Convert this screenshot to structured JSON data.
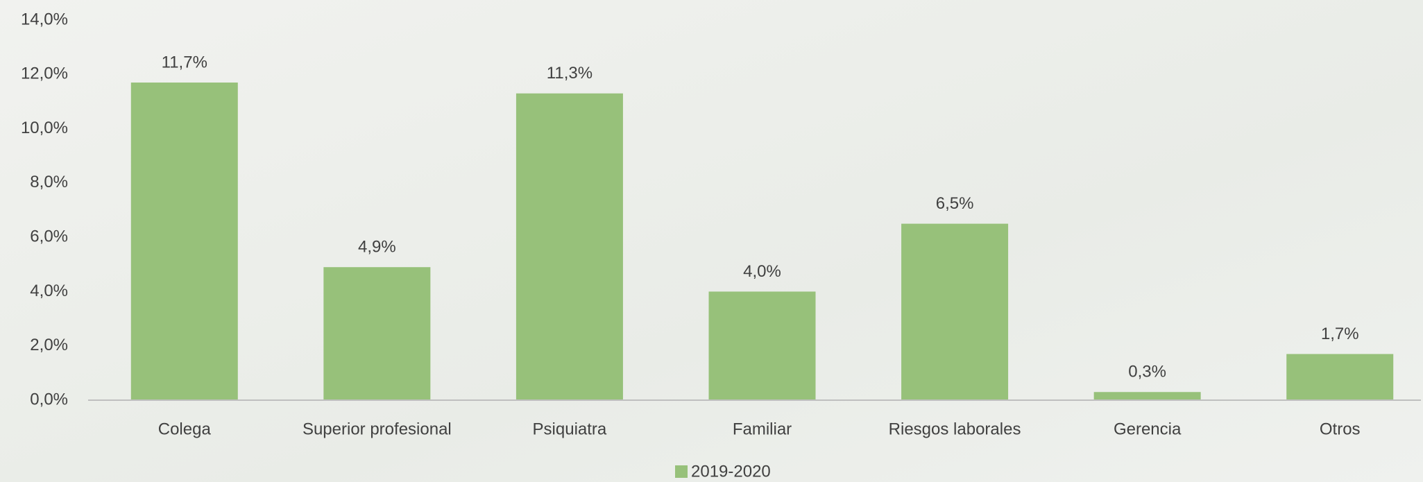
{
  "chart_data": {
    "type": "bar",
    "categories": [
      "Colega",
      "Superior profesional",
      "Psiquiatra",
      "Familiar",
      "Riesgos laborales",
      "Gerencia",
      "Otros"
    ],
    "series": [
      {
        "name": "2019-2020",
        "color": "#97c17a",
        "values": [
          11.7,
          4.9,
          11.3,
          4.0,
          6.5,
          0.3,
          1.7
        ],
        "value_labels": [
          "11,7%",
          "4,9%",
          "11,3%",
          "4,0%",
          "6,5%",
          "0,3%",
          "1,7%"
        ]
      }
    ],
    "ylim": [
      0,
      14
    ],
    "yticks": [
      {
        "value": 0,
        "label": "0,0%"
      },
      {
        "value": 2,
        "label": "2,0%"
      },
      {
        "value": 4,
        "label": "4,0%"
      },
      {
        "value": 6,
        "label": "6,0%"
      },
      {
        "value": 8,
        "label": "8,0%"
      },
      {
        "value": 10,
        "label": "10,0%"
      },
      {
        "value": 12,
        "label": "12,0%"
      },
      {
        "value": 14,
        "label": "14,0%"
      }
    ],
    "grid": false,
    "legend": "bottom"
  }
}
